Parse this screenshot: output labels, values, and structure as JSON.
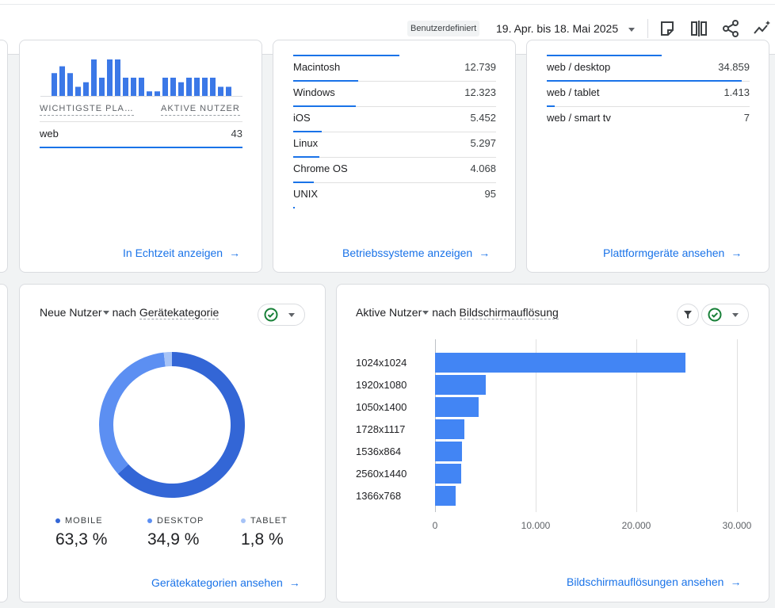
{
  "header": {
    "badge": "Benutzerdefiniert",
    "date_range": "19. Apr. bis 18. Mai 2025",
    "icons": [
      "note-icon",
      "compare-icon",
      "share-icon",
      "insights-icon"
    ]
  },
  "realtime_card": {
    "sparkline_values": [
      5,
      6.5,
      5,
      2,
      3,
      8,
      4,
      8,
      8,
      4,
      4,
      4,
      1,
      1,
      4,
      4,
      3,
      4,
      4,
      4,
      4,
      2,
      2,
      1
    ],
    "col1_header": "WICHTIGSTE PLA…",
    "col2_header": "AKTIVE NUTZER",
    "rows": [
      {
        "name": "web",
        "value": "43",
        "share": 1.0
      }
    ],
    "link": "In Echtzeit anzeigen"
  },
  "os_card": {
    "rows": [
      {
        "name": "Macintosh",
        "value": "12.739",
        "share": 0.32
      },
      {
        "name": "Windows",
        "value": "12.323",
        "share": 0.31
      },
      {
        "name": "iOS",
        "value": "5.452",
        "share": 0.14
      },
      {
        "name": "Linux",
        "value": "5.297",
        "share": 0.13
      },
      {
        "name": "Chrome OS",
        "value": "4.068",
        "share": 0.1
      },
      {
        "name": "UNIX",
        "value": "95",
        "share": 0.005
      }
    ],
    "link": "Betriebssysteme anzeigen"
  },
  "platform_card": {
    "rows": [
      {
        "name": "web / desktop",
        "value": "34.859",
        "share": 0.96
      },
      {
        "name": "web / tablet",
        "value": "1.413",
        "share": 0.04
      },
      {
        "name": "web / smart tv",
        "value": "7",
        "share": 0.001
      }
    ],
    "link": "Plattformgeräte ansehen"
  },
  "device_card": {
    "title_metric": "Neue Nutzer",
    "title_by": "nach",
    "title_dim": "Gerätekategorie",
    "legend": [
      {
        "label": "MOBILE",
        "value": "63,3 %",
        "color": "#3366d6"
      },
      {
        "label": "DESKTOP",
        "value": "34,9 %",
        "color": "#5c8ff2"
      },
      {
        "label": "TABLET",
        "value": "1,8 %",
        "color": "#a6c3f7"
      }
    ],
    "link": "Gerätekategorien ansehen"
  },
  "chart_data": {
    "type": "bar",
    "orientation": "horizontal",
    "categories": [
      "1024x1024",
      "1920x1080",
      "1050x1400",
      "1728x1117",
      "1536x864",
      "2560x1440",
      "1366x768"
    ],
    "values": [
      24900,
      5000,
      4300,
      2900,
      2700,
      2600,
      2050
    ],
    "x_ticks": [
      "0",
      "10.000",
      "20.000",
      "30.000"
    ],
    "xlim": [
      0,
      30000
    ],
    "grid": true
  },
  "resolution_card": {
    "title_metric": "Aktive Nutzer",
    "title_by": "nach",
    "title_dim": "Bildschirmauflösung",
    "link": "Bildschirmauflösungen ansehen"
  }
}
